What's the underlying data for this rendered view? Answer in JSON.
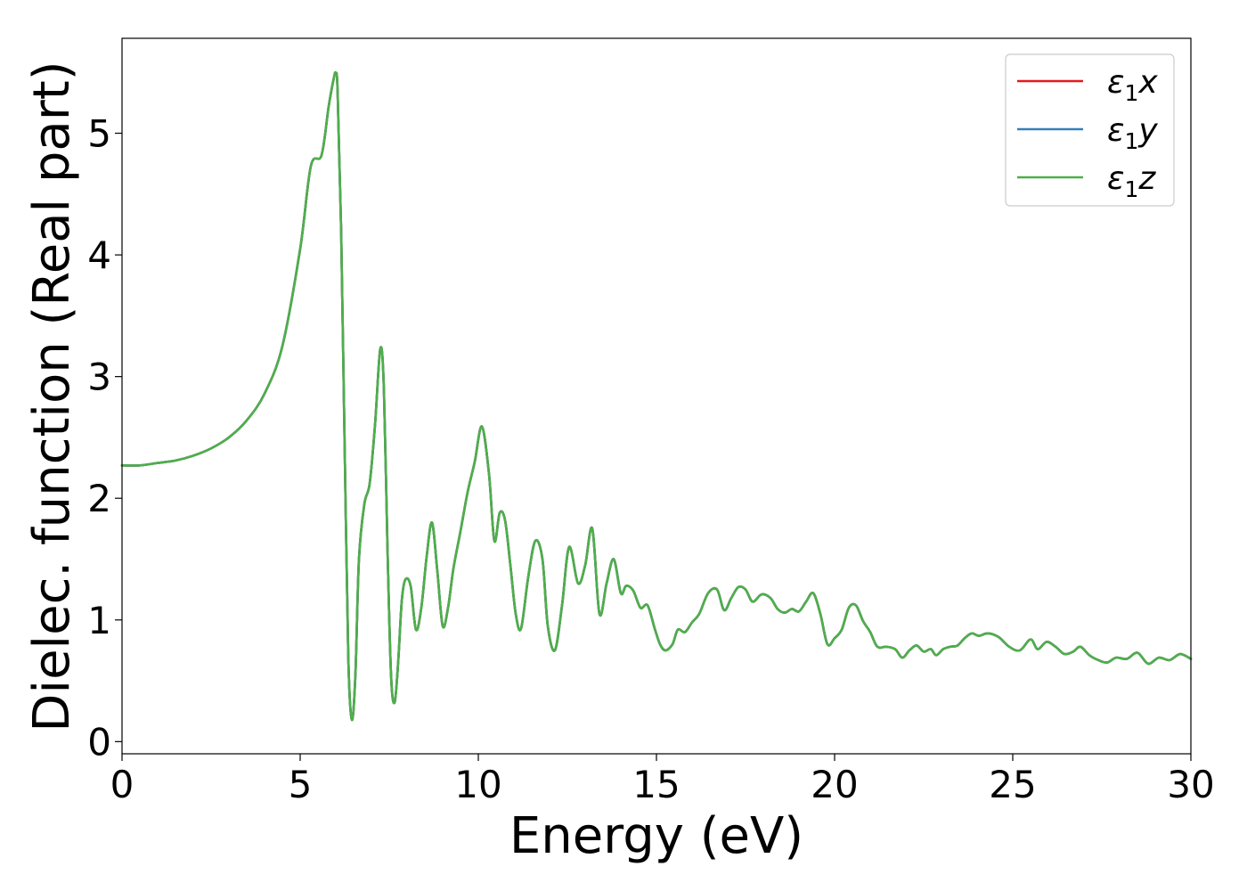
{
  "chart_data": {
    "type": "line",
    "title": "",
    "xlabel": "Energy (eV)",
    "ylabel": "Dielec. function (Real part)",
    "xlim": [
      0,
      30
    ],
    "ylim": [
      -0.1,
      5.78
    ],
    "xticks": [
      0,
      5,
      10,
      15,
      20,
      25,
      30
    ],
    "yticks": [
      0,
      1,
      2,
      3,
      4,
      5
    ],
    "grid": false,
    "legend_position": "top-right",
    "x": [
      0,
      0.5,
      1,
      1.5,
      2,
      2.5,
      3,
      3.5,
      4,
      4.5,
      5,
      5.3,
      5.6,
      5.8,
      5.95,
      6.0,
      6.05,
      6.15,
      6.25,
      6.35,
      6.45,
      6.55,
      6.65,
      6.8,
      6.95,
      7.1,
      7.25,
      7.35,
      7.45,
      7.55,
      7.65,
      7.75,
      7.85,
      7.95,
      8.1,
      8.25,
      8.4,
      8.55,
      8.7,
      8.85,
      9.0,
      9.15,
      9.3,
      9.5,
      9.7,
      9.9,
      10.1,
      10.3,
      10.45,
      10.6,
      10.75,
      10.9,
      11.05,
      11.2,
      11.4,
      11.6,
      11.8,
      11.95,
      12.15,
      12.35,
      12.55,
      12.8,
      13.0,
      13.2,
      13.4,
      13.6,
      13.8,
      14.0,
      14.15,
      14.35,
      14.55,
      14.75,
      14.95,
      15.1,
      15.25,
      15.45,
      15.6,
      15.8,
      16.0,
      16.2,
      16.45,
      16.7,
      16.9,
      17.1,
      17.3,
      17.5,
      17.7,
      17.95,
      18.2,
      18.4,
      18.6,
      18.8,
      19.0,
      19.2,
      19.4,
      19.6,
      19.8,
      20.0,
      20.2,
      20.4,
      20.6,
      20.8,
      21.0,
      21.2,
      21.45,
      21.7,
      21.9,
      22.1,
      22.3,
      22.5,
      22.7,
      22.85,
      23.05,
      23.25,
      23.45,
      23.65,
      23.85,
      24.05,
      24.3,
      24.6,
      24.9,
      25.2,
      25.5,
      25.7,
      25.95,
      26.2,
      26.45,
      26.7,
      26.9,
      27.15,
      27.4,
      27.65,
      27.9,
      28.2,
      28.5,
      28.8,
      29.1,
      29.4,
      29.7,
      30.0
    ],
    "series": [
      {
        "name": "ε1x",
        "color": "#e41a1c",
        "values": [
          2.27,
          2.27,
          2.29,
          2.31,
          2.35,
          2.41,
          2.5,
          2.64,
          2.86,
          3.25,
          4.05,
          4.73,
          4.82,
          5.22,
          5.46,
          5.49,
          5.35,
          4.2,
          2.4,
          0.7,
          0.18,
          0.55,
          1.5,
          1.95,
          2.12,
          2.6,
          3.23,
          2.9,
          1.6,
          0.55,
          0.32,
          0.65,
          1.15,
          1.33,
          1.28,
          0.92,
          1.1,
          1.52,
          1.8,
          1.4,
          0.95,
          1.1,
          1.42,
          1.73,
          2.05,
          2.3,
          2.59,
          2.2,
          1.65,
          1.88,
          1.82,
          1.45,
          1.05,
          0.93,
          1.35,
          1.65,
          1.5,
          0.95,
          0.75,
          1.12,
          1.6,
          1.3,
          1.45,
          1.75,
          1.05,
          1.3,
          1.5,
          1.22,
          1.28,
          1.24,
          1.1,
          1.12,
          0.93,
          0.8,
          0.75,
          0.8,
          0.92,
          0.9,
          0.98,
          1.05,
          1.22,
          1.25,
          1.08,
          1.18,
          1.27,
          1.25,
          1.15,
          1.21,
          1.18,
          1.09,
          1.06,
          1.09,
          1.07,
          1.15,
          1.22,
          1.05,
          0.8,
          0.85,
          0.92,
          1.1,
          1.12,
          0.99,
          0.9,
          0.78,
          0.78,
          0.76,
          0.69,
          0.75,
          0.79,
          0.74,
          0.76,
          0.71,
          0.76,
          0.78,
          0.79,
          0.85,
          0.89,
          0.87,
          0.89,
          0.86,
          0.78,
          0.75,
          0.84,
          0.76,
          0.82,
          0.78,
          0.72,
          0.74,
          0.78,
          0.71,
          0.67,
          0.65,
          0.69,
          0.68,
          0.73,
          0.64,
          0.69,
          0.67,
          0.72,
          0.68
        ]
      },
      {
        "name": "ε1y",
        "color": "#377eb8",
        "values": [
          2.27,
          2.27,
          2.29,
          2.31,
          2.35,
          2.41,
          2.5,
          2.64,
          2.86,
          3.25,
          4.05,
          4.73,
          4.82,
          5.22,
          5.46,
          5.49,
          5.35,
          4.2,
          2.4,
          0.7,
          0.18,
          0.55,
          1.5,
          1.95,
          2.12,
          2.6,
          3.23,
          2.9,
          1.6,
          0.55,
          0.32,
          0.65,
          1.15,
          1.33,
          1.28,
          0.92,
          1.1,
          1.52,
          1.8,
          1.4,
          0.95,
          1.1,
          1.42,
          1.73,
          2.05,
          2.3,
          2.59,
          2.2,
          1.65,
          1.88,
          1.82,
          1.45,
          1.05,
          0.93,
          1.35,
          1.65,
          1.5,
          0.95,
          0.75,
          1.12,
          1.6,
          1.3,
          1.45,
          1.75,
          1.05,
          1.3,
          1.5,
          1.22,
          1.28,
          1.24,
          1.1,
          1.12,
          0.93,
          0.8,
          0.75,
          0.8,
          0.92,
          0.9,
          0.98,
          1.05,
          1.22,
          1.25,
          1.08,
          1.18,
          1.27,
          1.25,
          1.15,
          1.21,
          1.18,
          1.09,
          1.06,
          1.09,
          1.07,
          1.15,
          1.22,
          1.05,
          0.8,
          0.85,
          0.92,
          1.1,
          1.12,
          0.99,
          0.9,
          0.78,
          0.78,
          0.76,
          0.69,
          0.75,
          0.79,
          0.74,
          0.76,
          0.71,
          0.76,
          0.78,
          0.79,
          0.85,
          0.89,
          0.87,
          0.89,
          0.86,
          0.78,
          0.75,
          0.84,
          0.76,
          0.82,
          0.78,
          0.72,
          0.74,
          0.78,
          0.71,
          0.67,
          0.65,
          0.69,
          0.68,
          0.73,
          0.64,
          0.69,
          0.67,
          0.72,
          0.68
        ]
      },
      {
        "name": "ε1z",
        "color": "#4daf4a",
        "values": [
          2.27,
          2.27,
          2.29,
          2.31,
          2.35,
          2.41,
          2.5,
          2.64,
          2.86,
          3.25,
          4.05,
          4.73,
          4.82,
          5.22,
          5.46,
          5.49,
          5.35,
          4.2,
          2.4,
          0.7,
          0.18,
          0.55,
          1.5,
          1.95,
          2.12,
          2.6,
          3.23,
          2.9,
          1.6,
          0.55,
          0.32,
          0.65,
          1.15,
          1.33,
          1.28,
          0.92,
          1.1,
          1.52,
          1.8,
          1.4,
          0.95,
          1.1,
          1.42,
          1.73,
          2.05,
          2.3,
          2.59,
          2.2,
          1.65,
          1.88,
          1.82,
          1.45,
          1.05,
          0.93,
          1.35,
          1.65,
          1.5,
          0.95,
          0.75,
          1.12,
          1.6,
          1.3,
          1.45,
          1.75,
          1.05,
          1.3,
          1.5,
          1.22,
          1.28,
          1.24,
          1.1,
          1.12,
          0.93,
          0.8,
          0.75,
          0.8,
          0.92,
          0.9,
          0.98,
          1.05,
          1.22,
          1.25,
          1.08,
          1.18,
          1.27,
          1.25,
          1.15,
          1.21,
          1.18,
          1.09,
          1.06,
          1.09,
          1.07,
          1.15,
          1.22,
          1.05,
          0.8,
          0.85,
          0.92,
          1.1,
          1.12,
          0.99,
          0.9,
          0.78,
          0.78,
          0.76,
          0.69,
          0.75,
          0.79,
          0.74,
          0.76,
          0.71,
          0.76,
          0.78,
          0.79,
          0.85,
          0.89,
          0.87,
          0.89,
          0.86,
          0.78,
          0.75,
          0.84,
          0.76,
          0.82,
          0.78,
          0.72,
          0.74,
          0.78,
          0.71,
          0.67,
          0.65,
          0.69,
          0.68,
          0.73,
          0.64,
          0.69,
          0.67,
          0.72,
          0.68
        ]
      }
    ],
    "legend": [
      {
        "symbol": "ε",
        "sub": "1",
        "axis": "x"
      },
      {
        "symbol": "ε",
        "sub": "1",
        "axis": "y"
      },
      {
        "symbol": "ε",
        "sub": "1",
        "axis": "z"
      }
    ]
  }
}
